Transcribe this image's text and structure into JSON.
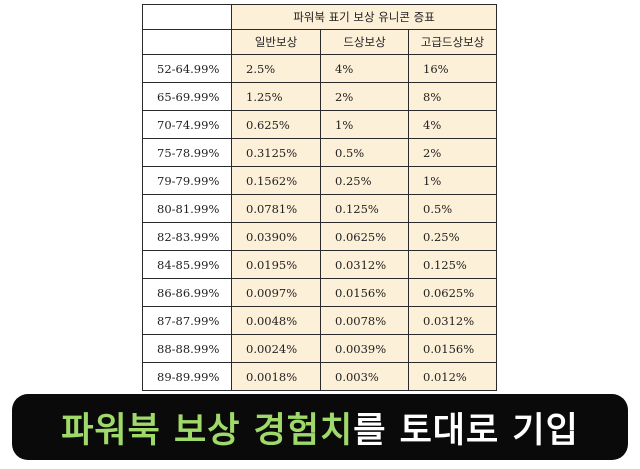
{
  "table": {
    "title": "파워북 표기 보상 유니콘 증표",
    "columns": [
      "일반보상",
      "드상보상",
      "고급드상보상"
    ],
    "rows": [
      {
        "range": "52-64.99%",
        "values": [
          "2.5%",
          "4%",
          "16%"
        ]
      },
      {
        "range": "65-69.99%",
        "values": [
          "1.25%",
          "2%",
          "8%"
        ]
      },
      {
        "range": "70-74.99%",
        "values": [
          "0.625%",
          "1%",
          "4%"
        ]
      },
      {
        "range": "75-78.99%",
        "values": [
          "0.3125%",
          "0.5%",
          "2%"
        ]
      },
      {
        "range": "79-79.99%",
        "values": [
          "0.1562%",
          "0.25%",
          "1%"
        ]
      },
      {
        "range": "80-81.99%",
        "values": [
          "0.0781%",
          "0.125%",
          "0.5%"
        ]
      },
      {
        "range": "82-83.99%",
        "values": [
          "0.0390%",
          "0.0625%",
          "0.25%"
        ]
      },
      {
        "range": "84-85.99%",
        "values": [
          "0.0195%",
          "0.0312%",
          "0.125%"
        ]
      },
      {
        "range": "86-86.99%",
        "values": [
          "0.0097%",
          "0.0156%",
          "0.0625%"
        ]
      },
      {
        "range": "87-87.99%",
        "values": [
          "0.0048%",
          "0.0078%",
          "0.0312%"
        ]
      },
      {
        "range": "88-88.99%",
        "values": [
          "0.0024%",
          "0.0039%",
          "0.0156%"
        ]
      },
      {
        "range": "89-89.99%",
        "values": [
          "0.0018%",
          "0.003%",
          "0.012%"
        ]
      }
    ]
  },
  "banner": {
    "highlight": "파워북 보상 경험치",
    "rest": "를 토대로 기입"
  },
  "colors": {
    "cell_fill": "#fdf0d9",
    "banner_bg": "#0a0a0a",
    "banner_highlight": "#9fd96a",
    "banner_text": "#ffffff"
  }
}
